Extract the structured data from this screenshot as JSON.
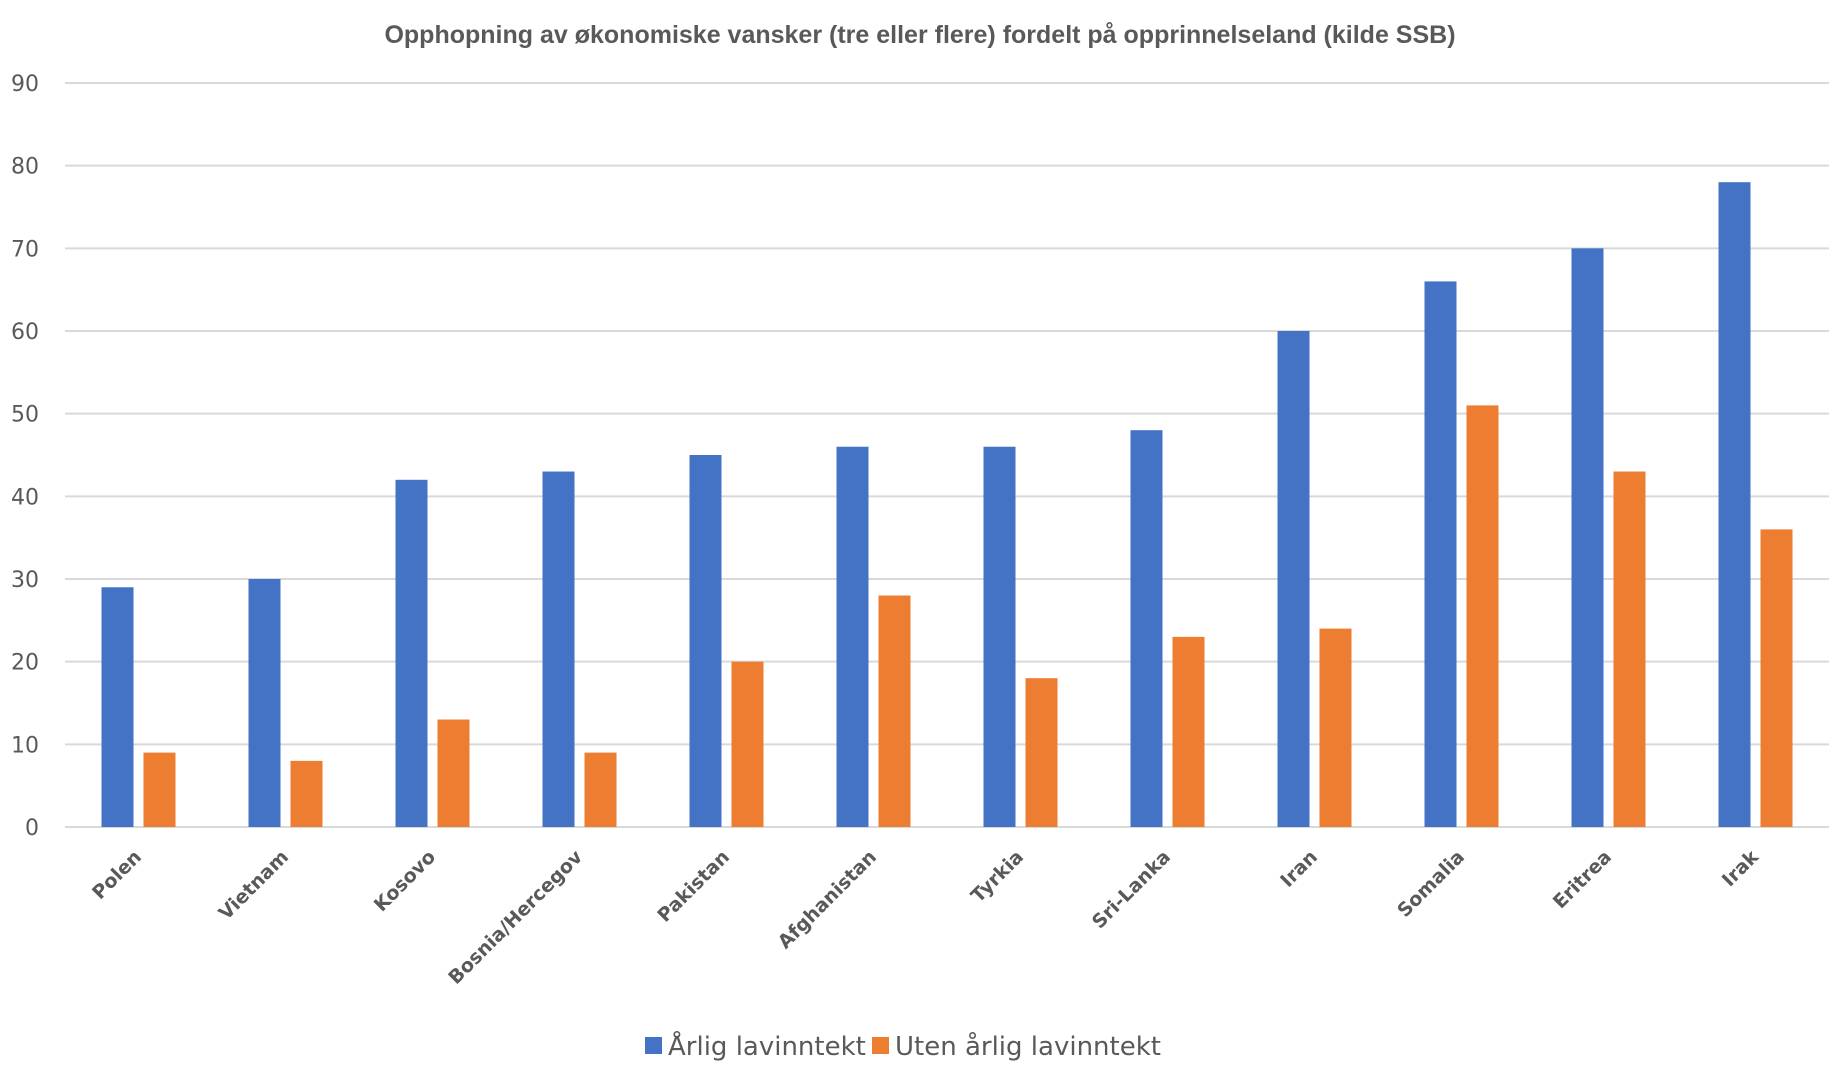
{
  "chart_data": {
    "type": "bar",
    "title": "Opphopning av økonomiske vansker (tre eller flere) fordelt på opprinnelseland (kilde SSB)",
    "xlabel": "",
    "ylabel": "",
    "ylim": [
      0,
      90
    ],
    "yticks": [
      0,
      10,
      20,
      30,
      40,
      50,
      60,
      70,
      80,
      90
    ],
    "ytick_labels": [
      "0",
      "10",
      "20",
      "30",
      "40",
      "50",
      "60",
      "70",
      "80",
      "90"
    ],
    "grid": true,
    "legend_position": "bottom",
    "categories": [
      "Polen",
      "Vietnam",
      "Kosovo",
      "Bosnia/Hercegov",
      "Pakistan",
      "Afghanistan",
      "Tyrkia",
      "Sri-Lanka",
      "Iran",
      "Somalia",
      "Eritrea",
      "Irak"
    ],
    "series": [
      {
        "name": "Årlig lavinntekt",
        "color": "#4472c4",
        "values": [
          29,
          30,
          42,
          43,
          45,
          46,
          46,
          48,
          60,
          66,
          70,
          78
        ]
      },
      {
        "name": "Uten årlig lavinntekt",
        "color": "#ed7d31",
        "values": [
          9,
          8,
          13,
          9,
          20,
          28,
          18,
          23,
          24,
          51,
          43,
          36
        ]
      }
    ]
  }
}
